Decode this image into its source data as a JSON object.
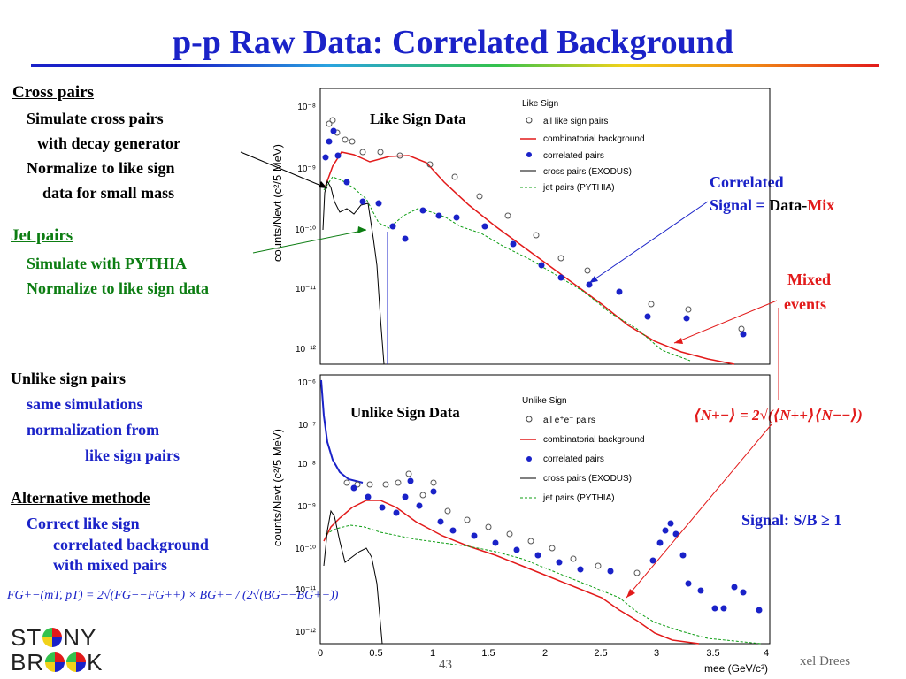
{
  "slide": {
    "title": "p-p Raw Data: Correlated Background",
    "page_number": "43",
    "author": "xel Drees"
  },
  "left_text": {
    "cross_pairs": {
      "heading": "Cross pairs",
      "lines": [
        "Simulate cross pairs",
        "with decay generator",
        "Normalize to like sign",
        "data for small mass"
      ]
    },
    "jet_pairs": {
      "heading": "Jet pairs",
      "lines": [
        "Simulate with PYTHIA",
        "Normalize to like sign data"
      ]
    },
    "unlike": {
      "heading": "Unlike sign pairs",
      "lines": [
        "same simulations",
        "normalization from",
        "like sign pairs"
      ]
    },
    "alt": {
      "heading": "Alternative methode",
      "lines": [
        "Correct like sign",
        "correlated background",
        "with mixed pairs"
      ]
    },
    "formula": "FG+−(mT, pT) = 2√(FG−−FG++) × BG+− / (2√(BG−−BG++))"
  },
  "right_text": {
    "correlated": {
      "line1": "Correlated",
      "line2_a": "Signal = ",
      "line2_b": "Data-",
      "line2_c": "Mix"
    },
    "mixed": {
      "line1": "Mixed",
      "line2": "events"
    },
    "norm_formula": "⟨N+−⟩ = 2√(⟨N++⟩⟨N−−⟩)",
    "signal": "Signal: S/B ≥ 1"
  },
  "logo": {
    "top": "ST",
    "top_end": "NY",
    "bottom": "BR",
    "bottom_end": "K"
  },
  "plots": {
    "top_label": "Like Sign Data",
    "bottom_label": "Unlike Sign Data",
    "ylabel": "counts/Nevt (c²/5 MeV)",
    "xlabel": "mee (GeV/c²)",
    "top_legend": {
      "title": "Like Sign",
      "items": [
        "all like sign pairs",
        "combinatorial background",
        "correlated pairs",
        "cross pairs (EXODUS)",
        "jet pairs (PYTHIA)"
      ]
    },
    "bottom_legend": {
      "title": "Unlike Sign",
      "items": [
        "all e⁺e⁻ pairs",
        "combinatorial background",
        "correlated pairs",
        "cross pairs (EXODUS)",
        "jet pairs (PYTHIA)"
      ]
    },
    "x_ticks": [
      "0",
      "0.5",
      "1",
      "1.5",
      "2",
      "2.5",
      "3",
      "3.5",
      "4"
    ],
    "top_y_ticks": [
      "10⁻⁸",
      "10⁻⁹",
      "10⁻¹⁰",
      "10⁻¹¹",
      "10⁻¹²"
    ],
    "bottom_y_ticks": [
      "10⁻⁶",
      "10⁻⁷",
      "10⁻⁸",
      "10⁻⁹",
      "10⁻¹⁰",
      "10⁻¹¹",
      "10⁻¹²"
    ]
  },
  "colors": {
    "title": "#1a22c8",
    "jet": "#0c7d12",
    "red": "#e21a1a",
    "blue": "#1a22c8"
  }
}
